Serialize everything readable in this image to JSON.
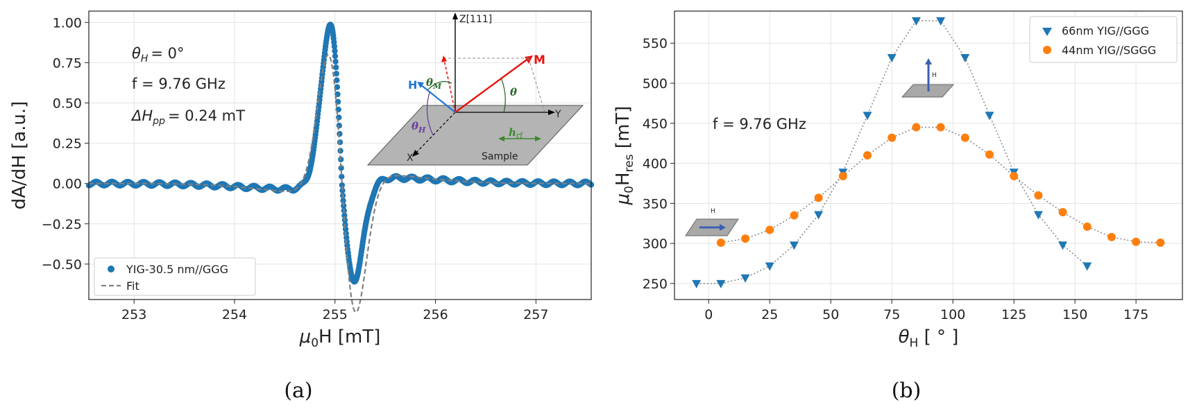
{
  "captions": {
    "a": "(a)",
    "b": "(b)"
  },
  "colors": {
    "blue": "#1f77b4",
    "orange": "#ff7f0e",
    "fit": "#808080",
    "grid": "#e3e3e3"
  },
  "panel_a": {
    "annotations": {
      "theta": "θ",
      "theta_sub": "H",
      "theta_val": "= 0°",
      "freq": "f = 9.76 GHz",
      "dh": "ΔH",
      "dh_sub": "pp",
      "dh_val": "= 0.24 mT"
    },
    "inset": {
      "z": "Z[111]",
      "y": "Y",
      "x": "X",
      "m": "M",
      "h": "H",
      "theta_m": "θ",
      "theta_m_sub": "M",
      "theta": "θ",
      "theta_h": "θ",
      "theta_h_sub": "H",
      "hrf": "h",
      "hrf_sub": "rf",
      "sample": "Sample"
    }
  },
  "panel_b": {
    "annotations": {
      "freq": "f = 9.76 GHz",
      "h_small": "H"
    }
  },
  "chart_data": [
    {
      "type": "scatter",
      "xlabel_main": "μ",
      "xlabel_sub": "0",
      "xlabel_rest": "H [mT]",
      "ylabel": "dA/dH [a.u.]",
      "xlim": [
        252.55,
        257.55
      ],
      "ylim": [
        -0.72,
        1.07
      ],
      "xticks": [
        "253",
        "254",
        "255",
        "256",
        "257"
      ],
      "yticks": [
        "−0.50",
        "−0.25",
        "0.00",
        "0.25",
        "0.50",
        "0.75",
        "1.00"
      ],
      "grid": true,
      "legend_position": "lower-left",
      "series": [
        {
          "name": "YIG-30.5 nm//GGG",
          "kind": "points",
          "x0": 252.55,
          "x1": 257.55,
          "H0": 255.07,
          "dH": 0.24
        },
        {
          "name": "Fit",
          "kind": "dashed-line",
          "x0": 252.55,
          "x1": 257.55,
          "H0": 255.07,
          "dH": 0.28
        }
      ]
    },
    {
      "type": "scatter",
      "xlabel_main": "θ",
      "xlabel_sub": "H",
      "xlabel_rest": " [ ° ]",
      "ylabel_main": "μ",
      "ylabel_sub0": "0",
      "ylabel_mid": "H",
      "ylabel_sub": "res",
      "ylabel_rest": " [mT]",
      "xlim": [
        -14,
        194
      ],
      "ylim": [
        230,
        590
      ],
      "xticks": [
        "0",
        "25",
        "50",
        "75",
        "100",
        "125",
        "150",
        "175"
      ],
      "yticks": [
        "250",
        "300",
        "350",
        "400",
        "450",
        "500",
        "550"
      ],
      "grid": true,
      "legend_position": "top-right",
      "series": [
        {
          "name": "66nm YIG//GGG",
          "marker": "triangle-down",
          "x": [
            -5,
            5,
            15,
            25,
            35,
            45,
            55,
            65,
            75,
            85,
            95,
            105,
            115,
            125,
            135,
            145,
            155
          ],
          "y": [
            250,
            250,
            257,
            272,
            298,
            336,
            389,
            460,
            532,
            578,
            578,
            532,
            460,
            389,
            336,
            298,
            272
          ]
        },
        {
          "name": "44nm YIG//SGGG",
          "marker": "circle",
          "x": [
            5,
            15,
            25,
            35,
            45,
            55,
            65,
            75,
            85,
            95,
            105,
            115,
            125,
            135,
            145,
            155,
            165,
            175,
            185
          ],
          "y": [
            301,
            306,
            317,
            335,
            357,
            384,
            410,
            432,
            445,
            445,
            432,
            411,
            384,
            360,
            339,
            321,
            308,
            302,
            301
          ]
        }
      ]
    }
  ]
}
